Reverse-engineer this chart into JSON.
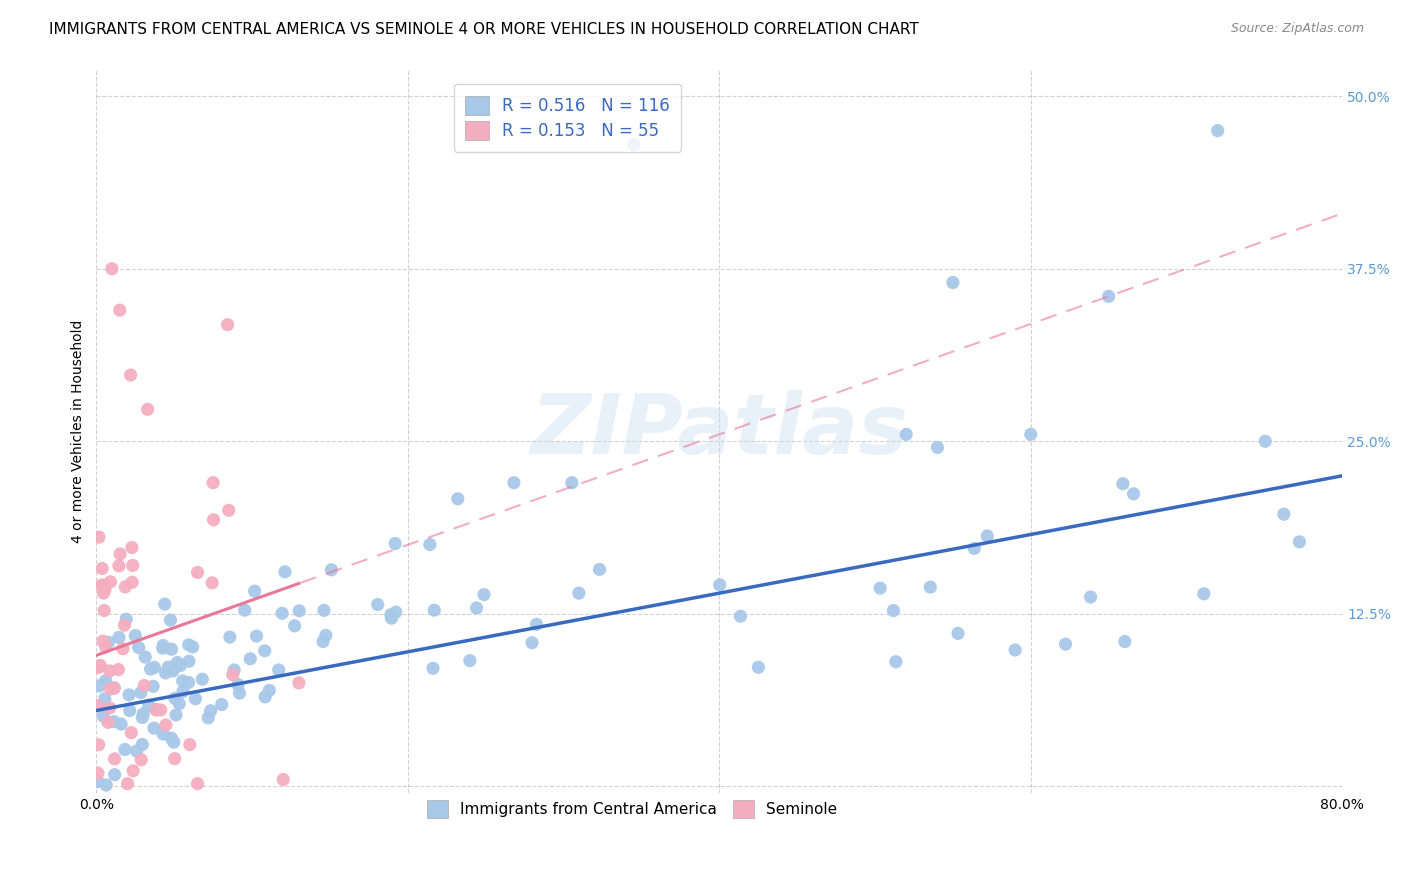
{
  "title": "IMMIGRANTS FROM CENTRAL AMERICA VS SEMINOLE 4 OR MORE VEHICLES IN HOUSEHOLD CORRELATION CHART",
  "source": "Source: ZipAtlas.com",
  "ylabel": "4 or more Vehicles in Household",
  "xlim": [
    0.0,
    0.8
  ],
  "ylim": [
    -0.005,
    0.52
  ],
  "xticks": [
    0.0,
    0.2,
    0.4,
    0.6,
    0.8
  ],
  "yticks": [
    0.0,
    0.125,
    0.25,
    0.375,
    0.5
  ],
  "blue_R": 0.516,
  "blue_N": 116,
  "pink_R": 0.153,
  "pink_N": 55,
  "blue_color": "#a8c8e8",
  "pink_color": "#f4aec0",
  "blue_line_color": "#3a6abf",
  "pink_line_color": "#e8799a",
  "legend_label_blue": "Immigrants from Central America",
  "legend_label_pink": "Seminole",
  "watermark": "ZIPatlas",
  "title_fontsize": 11,
  "label_fontsize": 10,
  "tick_fontsize": 10,
  "source_fontsize": 9,
  "blue_tick_color": "#5b9bd5",
  "legend_text_color": "#3a6abf"
}
